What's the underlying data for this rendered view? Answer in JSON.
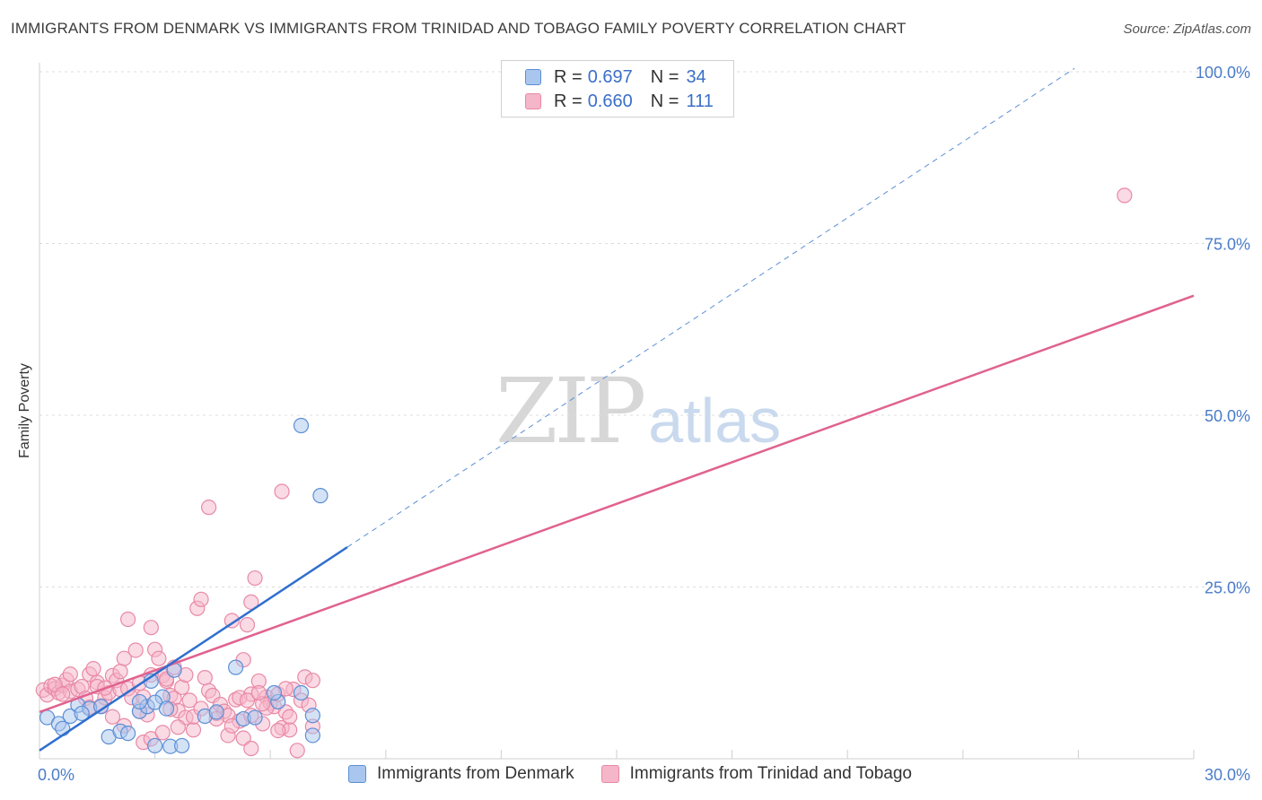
{
  "header": {
    "title": "IMMIGRANTS FROM DENMARK VS IMMIGRANTS FROM TRINIDAD AND TOBAGO FAMILY POVERTY CORRELATION CHART",
    "source": "Source: ZipAtlas.com"
  },
  "watermark": {
    "zip": "ZIP",
    "atlas": "atlas"
  },
  "legend_top": {
    "rows": [
      {
        "r_label": "R =",
        "r_value": "0.697",
        "n_label": "N =",
        "n_value": "34"
      },
      {
        "r_label": "R =",
        "r_value": "0.660",
        "n_label": "N =",
        "n_value": "111"
      }
    ]
  },
  "legend_bottom": {
    "items": [
      "Immigrants from Denmark",
      "Immigrants from Trinidad and Tobago"
    ]
  },
  "colors": {
    "denmark_fill": "#a9c6ee",
    "denmark_stroke": "#5b8fd6",
    "denmark_line": "#2f6fcf",
    "tt_fill": "#f5b6c9",
    "tt_stroke": "#e889a6",
    "tt_line": "#e0628f",
    "tick_text": "#4a7cc9",
    "grid": "#dcdcdc"
  },
  "chart_data": {
    "type": "scatter",
    "title": "IMMIGRANTS FROM DENMARK VS IMMIGRANTS FROM TRINIDAD AND TOBAGO FAMILY POVERTY CORRELATION CHART",
    "xlabel": "",
    "ylabel": "Family Poverty",
    "xlim": [
      0,
      30
    ],
    "ylim": [
      0,
      102
    ],
    "x_tick_labels": [
      {
        "v": 0,
        "t": "0.0%"
      },
      {
        "v": 30,
        "t": "30.0%"
      }
    ],
    "y_tick_labels": [
      {
        "v": 25,
        "t": "25.0%"
      },
      {
        "v": 50,
        "t": "50.0%"
      },
      {
        "v": 75,
        "t": "75.0%"
      },
      {
        "v": 100,
        "t": "100.0%"
      }
    ],
    "grid": true,
    "legend_position": "top-center",
    "series": [
      {
        "name": "Immigrants from Denmark",
        "r": 0.697,
        "n": 34,
        "trend": {
          "x": [
            0,
            8
          ],
          "y": [
            1.2,
            30.8
          ]
        },
        "trend_extension": {
          "x": [
            8,
            26.9
          ],
          "y": [
            30.8,
            100.5
          ]
        },
        "points": [
          [
            0.2,
            6.0
          ],
          [
            0.5,
            5.1
          ],
          [
            0.8,
            6.2
          ],
          [
            0.6,
            4.4
          ],
          [
            1.0,
            7.8
          ],
          [
            1.3,
            7.3
          ],
          [
            1.1,
            6.6
          ],
          [
            1.6,
            7.6
          ],
          [
            1.8,
            3.2
          ],
          [
            2.1,
            4.0
          ],
          [
            2.3,
            3.7
          ],
          [
            2.6,
            6.9
          ],
          [
            2.8,
            7.6
          ],
          [
            3.2,
            9.0
          ],
          [
            3.0,
            8.2
          ],
          [
            2.6,
            8.3
          ],
          [
            2.9,
            11.3
          ],
          [
            3.3,
            7.3
          ],
          [
            3.5,
            12.9
          ],
          [
            3.0,
            1.9
          ],
          [
            3.4,
            1.8
          ],
          [
            3.7,
            1.9
          ],
          [
            4.3,
            6.2
          ],
          [
            4.6,
            6.8
          ],
          [
            5.3,
            5.8
          ],
          [
            5.1,
            13.3
          ],
          [
            5.6,
            6.0
          ],
          [
            6.2,
            8.3
          ],
          [
            6.8,
            9.6
          ],
          [
            6.1,
            9.6
          ],
          [
            7.1,
            6.3
          ],
          [
            7.1,
            3.4
          ],
          [
            6.8,
            48.5
          ],
          [
            7.3,
            38.3
          ]
        ]
      },
      {
        "name": "Immigrants from Trinidad and Tobago",
        "r": 0.66,
        "n": 111,
        "trend": {
          "x": [
            0,
            30
          ],
          "y": [
            6.8,
            67.4
          ]
        },
        "points": [
          [
            0.1,
            10.0
          ],
          [
            0.2,
            9.3
          ],
          [
            0.3,
            10.6
          ],
          [
            0.4,
            10.2
          ],
          [
            0.5,
            9.6
          ],
          [
            0.6,
            10.7
          ],
          [
            0.7,
            11.5
          ],
          [
            0.8,
            9.8
          ],
          [
            1.0,
            10.1
          ],
          [
            1.1,
            10.5
          ],
          [
            1.2,
            8.8
          ],
          [
            1.3,
            12.3
          ],
          [
            1.4,
            13.1
          ],
          [
            1.5,
            11.1
          ],
          [
            1.6,
            7.7
          ],
          [
            1.7,
            8.9
          ],
          [
            1.8,
            9.6
          ],
          [
            1.9,
            12.1
          ],
          [
            2.0,
            11.4
          ],
          [
            2.1,
            10.1
          ],
          [
            2.2,
            14.6
          ],
          [
            2.3,
            10.2
          ],
          [
            2.4,
            8.9
          ],
          [
            2.5,
            15.8
          ],
          [
            2.6,
            11.0
          ],
          [
            2.7,
            9.0
          ],
          [
            2.8,
            6.4
          ],
          [
            2.9,
            19.1
          ],
          [
            3.0,
            15.9
          ],
          [
            3.1,
            14.6
          ],
          [
            3.2,
            12.1
          ],
          [
            3.3,
            11.3
          ],
          [
            3.4,
            9.2
          ],
          [
            3.5,
            8.8
          ],
          [
            3.6,
            7.0
          ],
          [
            3.7,
            10.4
          ],
          [
            3.8,
            6.0
          ],
          [
            3.9,
            8.5
          ],
          [
            4.0,
            4.2
          ],
          [
            4.1,
            21.9
          ],
          [
            4.2,
            23.2
          ],
          [
            4.3,
            11.8
          ],
          [
            4.4,
            9.9
          ],
          [
            4.5,
            9.2
          ],
          [
            4.6,
            6.6
          ],
          [
            4.7,
            7.9
          ],
          [
            4.8,
            6.9
          ],
          [
            4.9,
            6.3
          ],
          [
            5.0,
            20.1
          ],
          [
            5.1,
            8.6
          ],
          [
            5.2,
            5.5
          ],
          [
            5.3,
            14.4
          ],
          [
            5.4,
            19.5
          ],
          [
            5.5,
            22.8
          ],
          [
            5.6,
            26.3
          ],
          [
            5.7,
            11.3
          ],
          [
            5.8,
            5.1
          ],
          [
            5.9,
            9.0
          ],
          [
            6.0,
            8.1
          ],
          [
            6.1,
            7.6
          ],
          [
            6.2,
            9.4
          ],
          [
            6.3,
            4.5
          ],
          [
            6.4,
            6.8
          ],
          [
            6.5,
            4.2
          ],
          [
            6.6,
            10.1
          ],
          [
            6.7,
            1.2
          ],
          [
            6.8,
            8.5
          ],
          [
            6.9,
            11.9
          ],
          [
            7.0,
            7.8
          ],
          [
            7.1,
            11.4
          ],
          [
            2.3,
            20.3
          ],
          [
            3.5,
            13.3
          ],
          [
            4.4,
            36.6
          ],
          [
            0.4,
            10.8
          ],
          [
            0.6,
            9.4
          ],
          [
            0.8,
            12.3
          ],
          [
            1.3,
            7.5
          ],
          [
            1.5,
            10.5
          ],
          [
            1.9,
            6.1
          ],
          [
            2.2,
            4.8
          ],
          [
            2.6,
            6.9
          ],
          [
            2.7,
            2.4
          ],
          [
            2.9,
            2.9
          ],
          [
            3.2,
            3.8
          ],
          [
            3.4,
            7.2
          ],
          [
            3.6,
            4.6
          ],
          [
            4.0,
            6.1
          ],
          [
            4.2,
            7.3
          ],
          [
            4.6,
            5.8
          ],
          [
            4.9,
            3.4
          ],
          [
            5.0,
            4.8
          ],
          [
            5.3,
            3.0
          ],
          [
            5.5,
            6.3
          ],
          [
            5.9,
            7.4
          ],
          [
            6.2,
            4.1
          ],
          [
            5.5,
            9.4
          ],
          [
            5.8,
            8.0
          ],
          [
            6.5,
            6.1
          ],
          [
            6.4,
            10.2
          ],
          [
            7.1,
            4.7
          ],
          [
            5.5,
            1.5
          ],
          [
            5.2,
            8.9
          ],
          [
            5.4,
            8.5
          ],
          [
            5.7,
            9.6
          ],
          [
            6.3,
            38.9
          ],
          [
            3.3,
            11.6
          ],
          [
            3.8,
            12.2
          ],
          [
            2.9,
            12.2
          ],
          [
            1.7,
            10.3
          ],
          [
            28.2,
            82.0
          ],
          [
            2.1,
            12.7
          ]
        ]
      }
    ]
  }
}
